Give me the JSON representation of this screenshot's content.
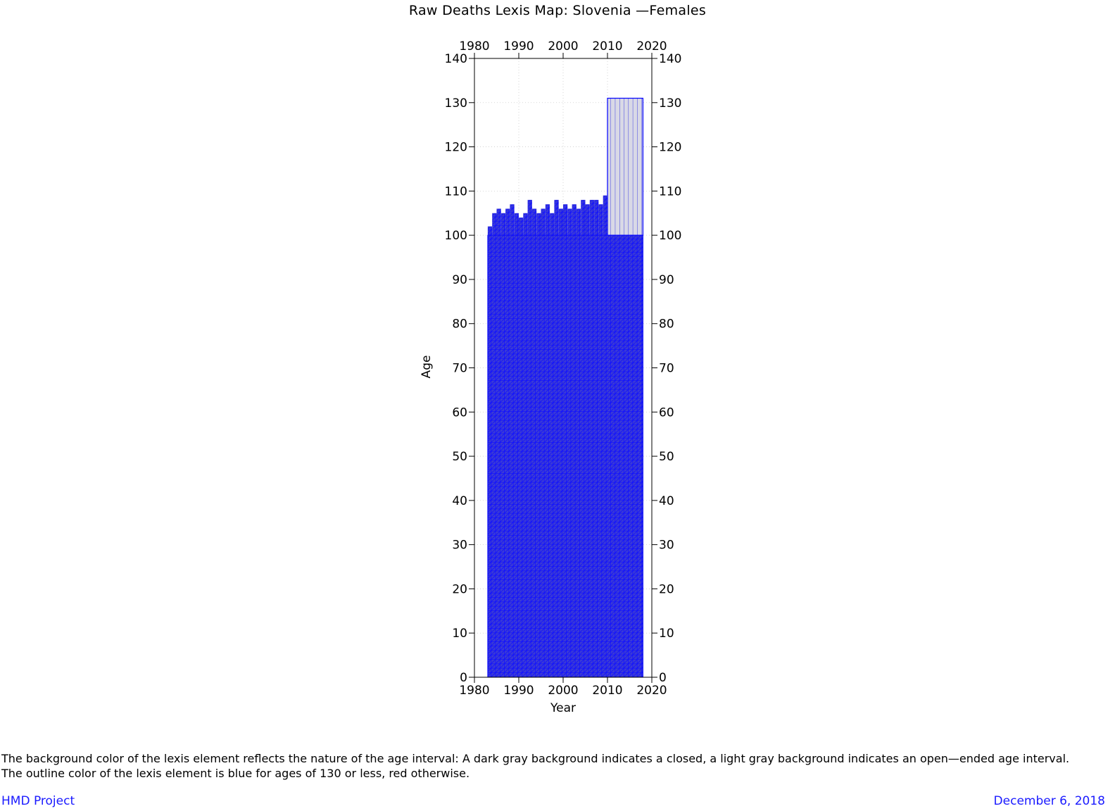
{
  "chart_data": {
    "type": "heatmap",
    "title": "Raw Deaths Lexis Map: Slovenia —Females",
    "xlabel": "Year",
    "ylabel": "Age",
    "xlim": [
      1980,
      2020
    ],
    "ylim": [
      0,
      140
    ],
    "x_ticks": [
      1980,
      1990,
      2000,
      2010,
      2020
    ],
    "y_ticks": [
      0,
      10,
      20,
      30,
      40,
      50,
      60,
      70,
      80,
      90,
      100,
      110,
      120,
      130,
      140
    ],
    "grid": true,
    "closed_interval_region": {
      "years": [
        1983,
        2018
      ],
      "ages": [
        0,
        100
      ],
      "upper_edge_ages": [
        102,
        105,
        106,
        105,
        106,
        107,
        105,
        104,
        105,
        108,
        106,
        105,
        106,
        107,
        105,
        108,
        106,
        107,
        106,
        107,
        106,
        108,
        107,
        108,
        108,
        107,
        109,
        108
      ]
    },
    "open_interval_region": {
      "years": [
        2010,
        2018
      ],
      "ages": [
        100,
        131
      ]
    },
    "outline_color": "#0000ff",
    "closed_fill_color": "#3b3bd6",
    "open_fill_color": "#d9d9e6"
  },
  "footer": {
    "note_line1": "The background color of the lexis element reflects the nature of the age interval: A dark gray background indicates a closed, a light gray background indicates an open—ended age interval.",
    "note_line2": "The outline color of the lexis element is blue for ages of 130 or less, red otherwise.",
    "project": "HMD Project",
    "date": "December 6, 2018"
  }
}
